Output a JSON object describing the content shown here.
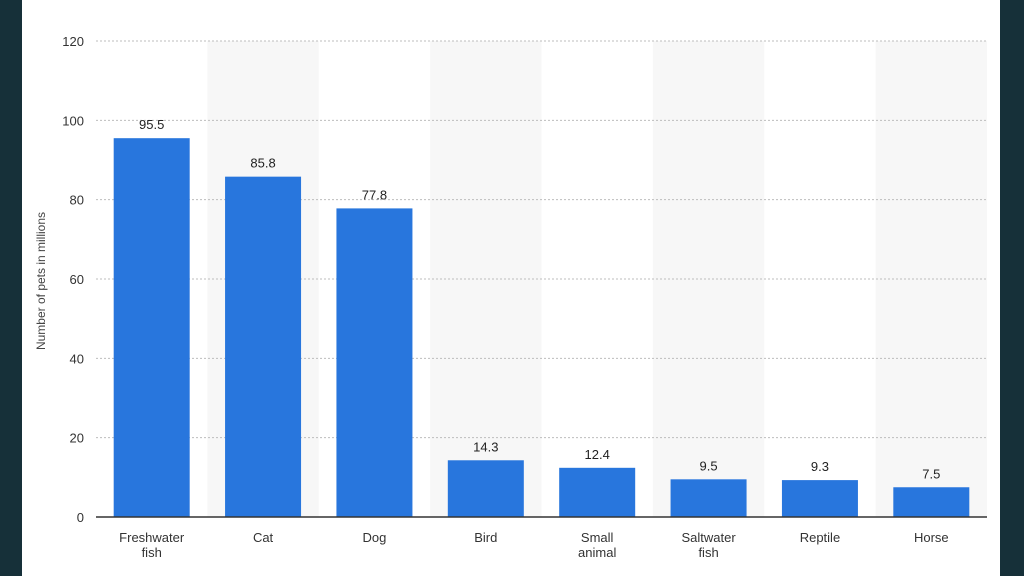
{
  "colors": {
    "background": "#163039",
    "bar": "#2876dd",
    "band": "#f7f7f7",
    "grid": "#bdbdbd"
  },
  "chart_data": {
    "type": "bar",
    "categories": [
      [
        "Freshwater",
        "fish"
      ],
      [
        "Cat"
      ],
      [
        "Dog"
      ],
      [
        "Bird"
      ],
      [
        "Small",
        "animal"
      ],
      [
        "Saltwater",
        "fish"
      ],
      [
        "Reptile"
      ],
      [
        "Horse"
      ]
    ],
    "values": [
      95.5,
      85.8,
      77.8,
      14.3,
      12.4,
      9.5,
      9.3,
      7.5
    ],
    "value_labels": [
      "95.5",
      "85.8",
      "77.8",
      "14.3",
      "12.4",
      "9.5",
      "9.3",
      "7.5"
    ],
    "ylabel": "Number of pets in millions",
    "ylim": [
      0,
      120
    ],
    "yticks": [
      0,
      20,
      40,
      60,
      80,
      100,
      120
    ],
    "grid": true,
    "legend": false
  }
}
